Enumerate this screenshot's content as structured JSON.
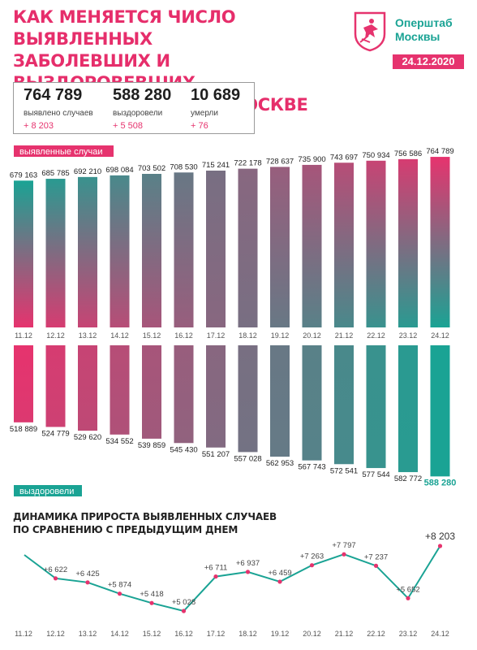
{
  "header": {
    "title_lines": [
      "КАК МЕНЯЕТСЯ ЧИСЛО ВЫЯВЛЕННЫХ",
      "ЗАБОЛЕВШИХ И ВЫЗДОРОВЕВШИХ",
      "ОТ КОРОНАВИРУСА В МОСКВЕ"
    ],
    "brand_lines": [
      "Оперштаб",
      "Москвы"
    ],
    "date": "24.12.2020"
  },
  "stats": [
    {
      "value": "764 789",
      "label": "выявлено случаев",
      "delta": "+ 8 203"
    },
    {
      "value": "588 280",
      "label": "выздоровели",
      "delta": "+ 5 508"
    },
    {
      "value": "10 689",
      "label": "умерли",
      "delta": "+ 76"
    }
  ],
  "colors": {
    "pink": "#e6336e",
    "teal": "#1aa394",
    "dark": "#222222"
  },
  "chart_data": [
    {
      "type": "bar",
      "label": "выявленные случаи",
      "categories": [
        "11.12",
        "12.12",
        "13.12",
        "14.12",
        "15.12",
        "16.12",
        "17.12",
        "18.12",
        "19.12",
        "20.12",
        "21.12",
        "22.12",
        "23.12",
        "24.12"
      ],
      "values": [
        679163,
        685785,
        692210,
        698084,
        703502,
        708530,
        715241,
        722178,
        728637,
        735900,
        743697,
        750934,
        756586,
        764789
      ],
      "value_labels": [
        "679 163",
        "685 785",
        "692 210",
        "698 084",
        "703 502",
        "708 530",
        "715 241",
        "722 178",
        "728 637",
        "735 900",
        "743 697",
        "750 934",
        "756 586",
        "764 789"
      ]
    },
    {
      "type": "bar",
      "label": "выздоровели",
      "categories": [
        "11.12",
        "12.12",
        "13.12",
        "14.12",
        "15.12",
        "16.12",
        "17.12",
        "18.12",
        "19.12",
        "20.12",
        "21.12",
        "22.12",
        "23.12",
        "24.12"
      ],
      "values": [
        518889,
        524779,
        529620,
        534552,
        539859,
        545430,
        551207,
        557028,
        562953,
        567743,
        572541,
        577544,
        582772,
        588280
      ],
      "value_labels": [
        "518 889",
        "524 779",
        "529 620",
        "534 552",
        "539 859",
        "545 430",
        "551 207",
        "557 028",
        "562 953",
        "567 743",
        "572 541",
        "577 544",
        "582 772",
        "588 280"
      ]
    },
    {
      "type": "line",
      "title_lines": [
        "ДИНАМИКА ПРИРОСТА ВЫЯВЛЕННЫХ СЛУЧАЕВ",
        "ПО СРАВНЕНИЮ С ПРЕДЫДУЩИМ ДНЕМ"
      ],
      "categories": [
        "11.12",
        "12.12",
        "13.12",
        "14.12",
        "15.12",
        "16.12",
        "17.12",
        "18.12",
        "19.12",
        "20.12",
        "21.12",
        "22.12",
        "23.12",
        "24.12"
      ],
      "values": [
        null,
        6622,
        6425,
        5874,
        5418,
        5028,
        6711,
        6937,
        6459,
        7263,
        7797,
        7237,
        5652,
        8203
      ],
      "value_labels": [
        "",
        "+6 622",
        "+6 425",
        "+5 874",
        "+5 418",
        "+5 028",
        "+6 711",
        "+6 937",
        "+6 459",
        "+7 263",
        "+7 797",
        "+7 237",
        "+5 652",
        "+8 203"
      ]
    }
  ]
}
